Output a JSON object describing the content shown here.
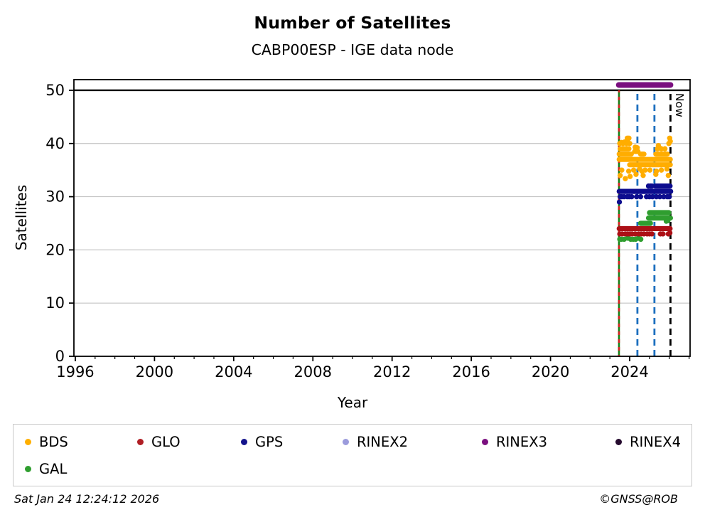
{
  "page": {
    "title": "Number of Satellites",
    "subtitle": "CABP00ESP - IGE data node"
  },
  "axes": {
    "xlabel": "Year",
    "ylabel": "Satellites",
    "now_label": "Now"
  },
  "legend": {
    "items": [
      {
        "label": "BDS",
        "color": "#ffaf00"
      },
      {
        "label": "GLO",
        "color": "#b01e24"
      },
      {
        "label": "GPS",
        "color": "#14148c"
      },
      {
        "label": "RINEX2",
        "color": "#9b9bdc"
      },
      {
        "label": "RINEX3",
        "color": "#7a0f7f"
      },
      {
        "label": "RINEX4",
        "color": "#250a2e"
      },
      {
        "label": "GAL",
        "color": "#2f9e2f"
      }
    ]
  },
  "footer": {
    "timestamp": "Sat Jan 24 12:24:12 2026",
    "credit": "©GNSS@ROB"
  },
  "chart_data": {
    "type": "scatter",
    "title": "Number of Satellites",
    "subtitle": "CABP00ESP - IGE data node",
    "xlabel": "Year",
    "ylabel": "Satellites",
    "xlim": [
      1995.93,
      2027.05
    ],
    "ylim": [
      0,
      52
    ],
    "xticks_major": [
      1996,
      2000,
      2004,
      2008,
      2012,
      2016,
      2020,
      2024
    ],
    "xtick_minor_step": 1,
    "yticks": [
      0,
      10,
      20,
      30,
      40,
      50
    ],
    "grid": {
      "horizontal": [
        10,
        20,
        30,
        40
      ],
      "color": "#c3c3c3",
      "vertical": false
    },
    "reference_line": {
      "y": 50,
      "color": "#000000"
    },
    "event_lines": [
      {
        "name": "data-start",
        "x": 2023.46,
        "style": "solid-with-dash-overlay",
        "colors": [
          "#157f15",
          "#d42020"
        ],
        "label": ""
      },
      {
        "name": "event-1",
        "x": 2024.39,
        "style": "dashed",
        "colors": [
          "#1c6fbf"
        ],
        "label": ""
      },
      {
        "name": "event-2",
        "x": 2025.25,
        "style": "dashed",
        "colors": [
          "#1c6fbf"
        ],
        "label": ""
      },
      {
        "name": "now-line",
        "x": 2026.06,
        "style": "dashed",
        "colors": [
          "#000000"
        ],
        "label": "Now"
      }
    ],
    "legend_position": "bottom",
    "series": [
      {
        "name": "BDS",
        "color": "#ffad00",
        "bands": [
          [
            2023.47,
            2026.05,
            37
          ],
          [
            2024.0,
            2026.05,
            36
          ],
          [
            2023.47,
            2024.08,
            38
          ],
          [
            2023.52,
            2023.96,
            39
          ],
          [
            2024.25,
            2024.42,
            38.5
          ],
          [
            2025.32,
            2025.9,
            38
          ],
          [
            2024.55,
            2024.72,
            38
          ]
        ],
        "points": [
          [
            2023.88,
            41
          ],
          [
            2023.96,
            41
          ],
          [
            2026.02,
            41
          ],
          [
            2026.05,
            40.4
          ],
          [
            2023.5,
            40
          ],
          [
            2023.58,
            40.2
          ],
          [
            2023.66,
            40
          ],
          [
            2023.75,
            40.3
          ],
          [
            2023.84,
            40
          ],
          [
            2023.92,
            40.2
          ],
          [
            2024.0,
            40
          ],
          [
            2025.45,
            39.6
          ],
          [
            2025.98,
            40
          ],
          [
            2024.28,
            39.3
          ],
          [
            2024.38,
            39.2
          ],
          [
            2025.4,
            39
          ],
          [
            2025.5,
            39.2
          ],
          [
            2025.6,
            39
          ],
          [
            2025.78,
            39
          ],
          [
            2023.6,
            35
          ],
          [
            2023.95,
            34.8
          ],
          [
            2024.2,
            35
          ],
          [
            2024.5,
            35.2
          ],
          [
            2024.62,
            34.8
          ],
          [
            2024.78,
            35
          ],
          [
            2025.02,
            35
          ],
          [
            2025.35,
            34.8
          ],
          [
            2025.6,
            35
          ],
          [
            2025.88,
            35.2
          ],
          [
            2023.52,
            34
          ],
          [
            2024.02,
            33.8
          ],
          [
            2024.32,
            34.2
          ],
          [
            2024.68,
            34
          ],
          [
            2025.32,
            34.2
          ],
          [
            2025.95,
            34
          ],
          [
            2023.78,
            33.4
          ]
        ]
      },
      {
        "name": "GAL",
        "color": "#2f9e2f",
        "bands": [
          [
            2025.0,
            2025.98,
            27
          ],
          [
            2024.95,
            2026.06,
            26
          ],
          [
            2024.55,
            2025.05,
            25
          ]
        ],
        "points": [
          [
            2023.5,
            22
          ],
          [
            2023.58,
            22
          ],
          [
            2023.72,
            22
          ],
          [
            2023.9,
            22.2
          ],
          [
            2024.05,
            22
          ],
          [
            2024.18,
            22
          ],
          [
            2024.3,
            22
          ],
          [
            2024.44,
            22.2
          ],
          [
            2024.56,
            22
          ],
          [
            2025.85,
            25.4
          ],
          [
            2025.93,
            25.5
          ]
        ]
      },
      {
        "name": "GLO",
        "color": "#ac1016",
        "bands": [
          [
            2023.47,
            2026.04,
            24
          ]
        ],
        "points": [
          [
            2023.5,
            23
          ],
          [
            2023.62,
            23
          ],
          [
            2023.78,
            23
          ],
          [
            2023.9,
            23
          ],
          [
            2024.02,
            23
          ],
          [
            2024.12,
            23
          ],
          [
            2024.28,
            23
          ],
          [
            2024.45,
            23
          ],
          [
            2024.58,
            23
          ],
          [
            2024.72,
            23
          ],
          [
            2024.88,
            23
          ],
          [
            2025.0,
            23
          ],
          [
            2025.12,
            23
          ],
          [
            2025.55,
            23
          ],
          [
            2025.68,
            23
          ],
          [
            2025.95,
            23
          ],
          [
            2026.03,
            23.2
          ]
        ]
      },
      {
        "name": "GPS",
        "color": "#0d0d8f",
        "bands": [
          [
            2023.47,
            2026.07,
            31
          ],
          [
            2025.28,
            2026.04,
            32
          ]
        ],
        "points": [
          [
            2023.48,
            29
          ],
          [
            2024.95,
            32
          ],
          [
            2025.05,
            32
          ],
          [
            2025.12,
            32
          ],
          [
            2023.52,
            30
          ],
          [
            2023.6,
            30
          ],
          [
            2023.72,
            30
          ],
          [
            2023.88,
            30
          ],
          [
            2023.98,
            30
          ],
          [
            2024.1,
            30
          ],
          [
            2024.35,
            30
          ],
          [
            2024.55,
            30
          ],
          [
            2024.85,
            30
          ],
          [
            2025.0,
            30
          ],
          [
            2025.15,
            30
          ],
          [
            2025.35,
            30
          ],
          [
            2025.52,
            30
          ],
          [
            2025.72,
            30
          ],
          [
            2025.9,
            30
          ],
          [
            2026.0,
            30
          ]
        ]
      },
      {
        "name": "RINEX3",
        "color": "#7a0f7f",
        "bands": [
          [
            2023.45,
            2026.06,
            51
          ]
        ],
        "points": []
      }
    ]
  }
}
